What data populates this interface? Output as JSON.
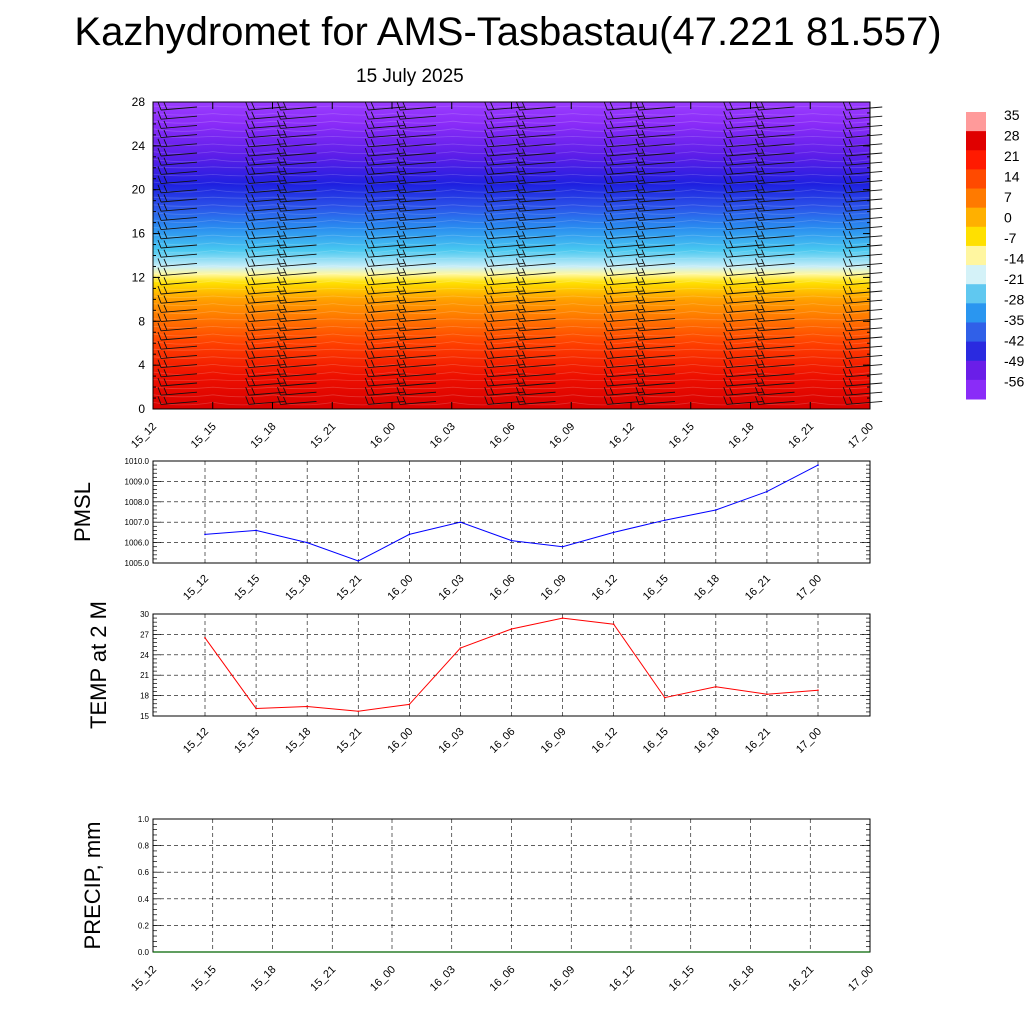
{
  "header": {
    "title": "Kazhydromet for AMS-Tasbastau(47.221 81.557)",
    "date": "15 July 2025"
  },
  "colors": {
    "pmsl_line": "#0000ff",
    "temp_line": "#ff0000",
    "precip_line": "#006400",
    "grid": "#000000"
  },
  "chart_data": [
    {
      "type": "heatmap",
      "title": "",
      "x_tick_labels": [
        "15_12",
        "15_15",
        "15_18",
        "15_21",
        "16_00",
        "16_03",
        "16_06",
        "16_09",
        "16_12",
        "16_15",
        "16_18",
        "16_21",
        "17_00"
      ],
      "y_ticks": [
        0,
        4,
        8,
        12,
        16,
        20,
        24,
        28
      ],
      "ylim": [
        0,
        28
      ],
      "colorbar_labels": [
        "35",
        "28",
        "21",
        "14",
        "7",
        "0",
        "-7",
        "-14",
        "-21",
        "-28",
        "-35",
        "-42",
        "-49",
        "-56"
      ],
      "colorbar_colors": [
        "#ff9a9a",
        "#e00000",
        "#ff1a00",
        "#ff4a00",
        "#ff7a00",
        "#ffb000",
        "#ffe000",
        "#fff6a0",
        "#d4f2f8",
        "#60c8f0",
        "#2a96f0",
        "#3060e8",
        "#2a2ae0",
        "#6a1ee8",
        "#8a2cf8"
      ],
      "profile": [
        {
          "y": 0,
          "color": "#d80000"
        },
        {
          "y": 3,
          "color": "#ee1000"
        },
        {
          "y": 6,
          "color": "#ff4000"
        },
        {
          "y": 8,
          "color": "#ff7000"
        },
        {
          "y": 10,
          "color": "#ffa000"
        },
        {
          "y": 11.5,
          "color": "#ffe000"
        },
        {
          "y": 12.3,
          "color": "#fff8a0"
        },
        {
          "y": 13,
          "color": "#c8eef8"
        },
        {
          "y": 14.5,
          "color": "#48c8f0"
        },
        {
          "y": 16.5,
          "color": "#2a8ef0"
        },
        {
          "y": 18.5,
          "color": "#2a50e8"
        },
        {
          "y": 20.5,
          "color": "#1e20e0"
        },
        {
          "y": 23,
          "color": "#5a1ee8"
        },
        {
          "y": 26,
          "color": "#8a2cf8"
        },
        {
          "y": 28,
          "color": "#9a3cff"
        }
      ]
    },
    {
      "type": "line",
      "ylabel": "PMSL",
      "x": [
        "15_12",
        "15_15",
        "15_18",
        "15_21",
        "16_00",
        "16_03",
        "16_06",
        "16_09",
        "16_12",
        "16_15",
        "16_18",
        "16_21",
        "17_00"
      ],
      "series": [
        {
          "values": [
            1006.4,
            1006.6,
            1006.0,
            1005.1,
            1006.4,
            1007.0,
            1006.1,
            1005.8,
            1006.5,
            1007.1,
            1007.6,
            1008.5,
            1009.8
          ]
        }
      ],
      "yticks": [
        "1005.0",
        "1006.0",
        "1007.0",
        "1008.0",
        "1009.0",
        "1010.0"
      ],
      "ylim": [
        1005,
        1010
      ],
      "grid": true
    },
    {
      "type": "line",
      "ylabel": "TEMP at 2 M",
      "x": [
        "15_12",
        "15_15",
        "15_18",
        "15_21",
        "16_00",
        "16_03",
        "16_06",
        "16_09",
        "16_12",
        "16_15",
        "16_18",
        "16_21",
        "17_00"
      ],
      "series": [
        {
          "values": [
            26.5,
            16.1,
            16.4,
            15.7,
            16.7,
            25.0,
            27.8,
            29.4,
            28.5,
            17.7,
            19.3,
            18.2,
            18.8
          ]
        }
      ],
      "yticks": [
        "15",
        "18",
        "21",
        "24",
        "27",
        "30"
      ],
      "ylim": [
        15,
        30
      ],
      "grid": true
    },
    {
      "type": "line",
      "ylabel": "PRECIP, mm",
      "x": [
        "15_12",
        "15_15",
        "15_18",
        "15_21",
        "16_00",
        "16_03",
        "16_06",
        "16_09",
        "16_12",
        "16_15",
        "16_18",
        "16_21",
        "17_00"
      ],
      "series": [
        {
          "values": [
            0,
            0,
            0,
            0,
            0,
            0,
            0,
            0,
            0,
            0,
            0,
            0,
            0
          ]
        }
      ],
      "yticks": [
        "0.0",
        "0.2",
        "0.4",
        "0.6",
        "0.8",
        "1.0"
      ],
      "ylim": [
        0,
        1
      ],
      "grid": true
    }
  ]
}
